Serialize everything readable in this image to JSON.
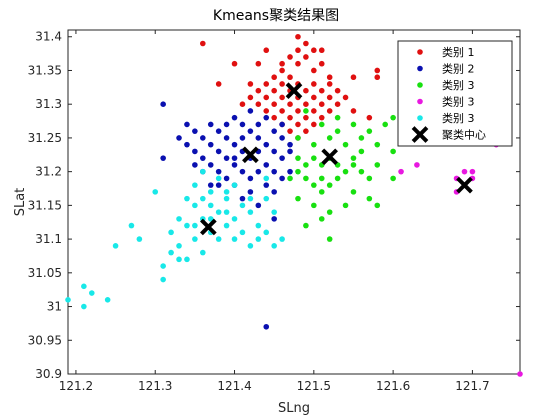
{
  "chart_data": {
    "type": "scatter",
    "title": "Kmeans聚类结果图",
    "xlabel": "SLng",
    "ylabel": "SLat",
    "xlim": [
      121.19,
      121.76
    ],
    "ylim": [
      30.9,
      31.41
    ],
    "xticks": [
      "121.2",
      "121.3",
      "121.4",
      "121.5",
      "121.6",
      "121.7"
    ],
    "xtick_values": [
      121.2,
      121.3,
      121.4,
      121.5,
      121.6,
      121.7
    ],
    "yticks": [
      "30.9",
      "30.95",
      "31",
      "31.05",
      "31.1",
      "31.15",
      "31.2",
      "31.25",
      "31.3",
      "31.35",
      "31.4"
    ],
    "ytick_values": [
      30.9,
      30.95,
      31.0,
      31.05,
      31.1,
      31.15,
      31.2,
      31.25,
      31.3,
      31.35,
      31.4
    ],
    "legend_position": "top-right",
    "grid": false,
    "series": [
      {
        "name": "类别 1",
        "color": "#e01010",
        "points": [
          [
            121.48,
            31.4
          ],
          [
            121.49,
            31.39
          ],
          [
            121.48,
            31.38
          ],
          [
            121.5,
            31.38
          ],
          [
            121.47,
            31.37
          ],
          [
            121.49,
            31.37
          ],
          [
            121.51,
            31.36
          ],
          [
            121.48,
            31.36
          ],
          [
            121.46,
            31.35
          ],
          [
            121.5,
            31.35
          ],
          [
            121.52,
            31.34
          ],
          [
            121.45,
            31.34
          ],
          [
            121.47,
            31.34
          ],
          [
            121.44,
            31.33
          ],
          [
            121.46,
            31.33
          ],
          [
            121.48,
            31.33
          ],
          [
            121.5,
            31.33
          ],
          [
            121.43,
            31.32
          ],
          [
            121.45,
            31.32
          ],
          [
            121.47,
            31.32
          ],
          [
            121.49,
            31.32
          ],
          [
            121.51,
            31.32
          ],
          [
            121.42,
            31.31
          ],
          [
            121.44,
            31.31
          ],
          [
            121.46,
            31.31
          ],
          [
            121.48,
            31.31
          ],
          [
            121.5,
            31.31
          ],
          [
            121.52,
            31.31
          ],
          [
            121.41,
            31.3
          ],
          [
            121.43,
            31.3
          ],
          [
            121.45,
            31.3
          ],
          [
            121.47,
            31.3
          ],
          [
            121.49,
            31.3
          ],
          [
            121.51,
            31.3
          ],
          [
            121.53,
            31.3
          ],
          [
            121.44,
            31.29
          ],
          [
            121.46,
            31.29
          ],
          [
            121.48,
            31.29
          ],
          [
            121.5,
            31.29
          ],
          [
            121.52,
            31.29
          ],
          [
            121.45,
            31.28
          ],
          [
            121.47,
            31.28
          ],
          [
            121.49,
            31.28
          ],
          [
            121.51,
            31.28
          ],
          [
            121.46,
            31.27
          ],
          [
            121.48,
            31.27
          ],
          [
            121.5,
            31.27
          ],
          [
            121.47,
            31.26
          ],
          [
            121.49,
            31.26
          ],
          [
            121.48,
            31.25
          ],
          [
            121.36,
            31.39
          ],
          [
            121.38,
            31.33
          ],
          [
            121.4,
            31.36
          ],
          [
            121.43,
            31.36
          ],
          [
            121.44,
            31.38
          ],
          [
            121.53,
            31.32
          ],
          [
            121.54,
            31.31
          ],
          [
            121.55,
            31.34
          ],
          [
            121.58,
            31.35
          ],
          [
            121.58,
            31.34
          ],
          [
            121.57,
            31.28
          ],
          [
            121.55,
            31.29
          ],
          [
            121.42,
            31.33
          ],
          [
            121.46,
            31.36
          ],
          [
            121.51,
            31.38
          ],
          [
            121.52,
            31.33
          ]
        ]
      },
      {
        "name": "类别 2",
        "color": "#0a10b0",
        "points": [
          [
            121.31,
            31.3
          ],
          [
            121.31,
            31.22
          ],
          [
            121.33,
            31.25
          ],
          [
            121.34,
            31.24
          ],
          [
            121.35,
            31.26
          ],
          [
            121.36,
            31.25
          ],
          [
            121.37,
            31.27
          ],
          [
            121.38,
            31.26
          ],
          [
            121.39,
            31.27
          ],
          [
            121.4,
            31.28
          ],
          [
            121.41,
            31.27
          ],
          [
            121.42,
            31.26
          ],
          [
            121.43,
            31.27
          ],
          [
            121.44,
            31.28
          ],
          [
            121.45,
            31.26
          ],
          [
            121.46,
            31.25
          ],
          [
            121.35,
            31.23
          ],
          [
            121.36,
            31.22
          ],
          [
            121.37,
            31.24
          ],
          [
            121.38,
            31.23
          ],
          [
            121.39,
            31.22
          ],
          [
            121.4,
            31.24
          ],
          [
            121.41,
            31.23
          ],
          [
            121.42,
            31.22
          ],
          [
            121.43,
            31.23
          ],
          [
            121.44,
            31.24
          ],
          [
            121.45,
            31.23
          ],
          [
            121.46,
            31.22
          ],
          [
            121.47,
            31.23
          ],
          [
            121.36,
            31.2
          ],
          [
            121.37,
            31.21
          ],
          [
            121.38,
            31.2
          ],
          [
            121.39,
            31.19
          ],
          [
            121.4,
            31.21
          ],
          [
            121.41,
            31.2
          ],
          [
            121.42,
            31.19
          ],
          [
            121.43,
            31.2
          ],
          [
            121.44,
            31.21
          ],
          [
            121.45,
            31.2
          ],
          [
            121.46,
            31.19
          ],
          [
            121.38,
            31.18
          ],
          [
            121.4,
            31.18
          ],
          [
            121.42,
            31.17
          ],
          [
            121.44,
            31.18
          ],
          [
            121.45,
            31.17
          ],
          [
            121.41,
            31.16
          ],
          [
            121.43,
            31.15
          ],
          [
            121.39,
            31.25
          ],
          [
            121.41,
            31.25
          ],
          [
            121.43,
            31.25
          ],
          [
            121.37,
            31.18
          ],
          [
            121.35,
            31.21
          ],
          [
            121.47,
            31.2
          ],
          [
            121.46,
            31.27
          ],
          [
            121.42,
            31.29
          ],
          [
            121.47,
            31.24
          ],
          [
            121.34,
            31.27
          ],
          [
            121.44,
            30.97
          ],
          [
            121.45,
            31.13
          ],
          [
            121.4,
            31.22
          ]
        ]
      },
      {
        "name": "类别 3",
        "color": "#18e010",
        "points": [
          [
            121.49,
            31.29
          ],
          [
            121.51,
            31.27
          ],
          [
            121.53,
            31.28
          ],
          [
            121.55,
            31.27
          ],
          [
            121.57,
            31.26
          ],
          [
            121.59,
            31.27
          ],
          [
            121.48,
            31.25
          ],
          [
            121.5,
            31.24
          ],
          [
            121.52,
            31.25
          ],
          [
            121.54,
            31.24
          ],
          [
            121.56,
            31.25
          ],
          [
            121.58,
            31.24
          ],
          [
            121.6,
            31.23
          ],
          [
            121.48,
            31.22
          ],
          [
            121.49,
            31.21
          ],
          [
            121.5,
            31.22
          ],
          [
            121.51,
            31.21
          ],
          [
            121.52,
            31.22
          ],
          [
            121.53,
            31.21
          ],
          [
            121.54,
            31.2
          ],
          [
            121.55,
            31.21
          ],
          [
            121.56,
            31.2
          ],
          [
            121.57,
            31.19
          ],
          [
            121.49,
            31.19
          ],
          [
            121.5,
            31.18
          ],
          [
            121.51,
            31.17
          ],
          [
            121.52,
            31.18
          ],
          [
            121.53,
            31.19
          ],
          [
            121.55,
            31.17
          ],
          [
            121.57,
            31.16
          ],
          [
            121.48,
            31.16
          ],
          [
            121.5,
            31.15
          ],
          [
            121.52,
            31.14
          ],
          [
            121.54,
            31.15
          ],
          [
            121.49,
            31.12
          ],
          [
            121.51,
            31.13
          ],
          [
            121.52,
            31.1
          ],
          [
            121.58,
            31.15
          ],
          [
            121.6,
            31.19
          ],
          [
            121.61,
            31.26
          ],
          [
            121.62,
            31.27
          ],
          [
            121.6,
            31.28
          ],
          [
            121.63,
            31.25
          ],
          [
            121.58,
            31.21
          ],
          [
            121.56,
            31.23
          ],
          [
            121.47,
            31.19
          ],
          [
            121.48,
            31.2
          ],
          [
            121.53,
            31.26
          ],
          [
            121.55,
            31.22
          ],
          [
            121.51,
            31.19
          ]
        ]
      },
      {
        "name": "类别 3",
        "color": "#e818e0",
        "points": [
          [
            121.61,
            31.2
          ],
          [
            121.63,
            31.21
          ],
          [
            121.68,
            31.19
          ],
          [
            121.69,
            31.2
          ],
          [
            121.7,
            31.19
          ],
          [
            121.69,
            31.18
          ],
          [
            121.7,
            31.2
          ],
          [
            121.68,
            31.17
          ],
          [
            121.73,
            31.24
          ],
          [
            121.76,
            30.9
          ]
        ]
      },
      {
        "name": "类别 3",
        "color": "#18e8e8",
        "points": [
          [
            121.19,
            31.01
          ],
          [
            121.21,
            31.03
          ],
          [
            121.22,
            31.02
          ],
          [
            121.21,
            31.0
          ],
          [
            121.24,
            31.01
          ],
          [
            121.25,
            31.09
          ],
          [
            121.27,
            31.12
          ],
          [
            121.28,
            31.1
          ],
          [
            121.3,
            31.17
          ],
          [
            121.31,
            31.06
          ],
          [
            121.32,
            31.11
          ],
          [
            121.33,
            31.13
          ],
          [
            121.34,
            31.16
          ],
          [
            121.35,
            31.18
          ],
          [
            121.36,
            31.2
          ],
          [
            121.37,
            31.17
          ],
          [
            121.38,
            31.19
          ],
          [
            121.39,
            31.16
          ],
          [
            121.4,
            31.18
          ],
          [
            121.41,
            31.15
          ],
          [
            121.42,
            31.14
          ],
          [
            121.43,
            31.12
          ],
          [
            121.44,
            31.16
          ],
          [
            121.34,
            31.12
          ],
          [
            121.35,
            31.1
          ],
          [
            121.36,
            31.13
          ],
          [
            121.37,
            31.11
          ],
          [
            121.38,
            31.14
          ],
          [
            121.39,
            31.12
          ],
          [
            121.4,
            31.1
          ],
          [
            121.41,
            31.11
          ],
          [
            121.42,
            31.09
          ],
          [
            121.43,
            31.1
          ],
          [
            121.44,
            31.11
          ],
          [
            121.33,
            31.09
          ],
          [
            121.32,
            31.08
          ],
          [
            121.31,
            31.04
          ],
          [
            121.33,
            31.07
          ],
          [
            121.35,
            31.15
          ],
          [
            121.36,
            31.16
          ],
          [
            121.37,
            31.15
          ],
          [
            121.39,
            31.14
          ],
          [
            121.4,
            31.13
          ],
          [
            121.38,
            31.1
          ],
          [
            121.36,
            31.08
          ],
          [
            121.34,
            31.07
          ],
          [
            121.42,
            31.16
          ],
          [
            121.44,
            31.19
          ],
          [
            121.45,
            31.14
          ],
          [
            121.46,
            31.1
          ],
          [
            121.39,
            31.17
          ],
          [
            121.37,
            31.13
          ],
          [
            121.35,
            31.12
          ],
          [
            121.45,
            31.09
          ]
        ]
      }
    ],
    "centroids": {
      "name": "聚类中心",
      "color": "#000000",
      "points": [
        [
          121.475,
          31.32
        ],
        [
          121.42,
          31.225
        ],
        [
          121.52,
          31.222
        ],
        [
          121.69,
          31.18
        ],
        [
          121.367,
          31.118
        ]
      ]
    }
  }
}
